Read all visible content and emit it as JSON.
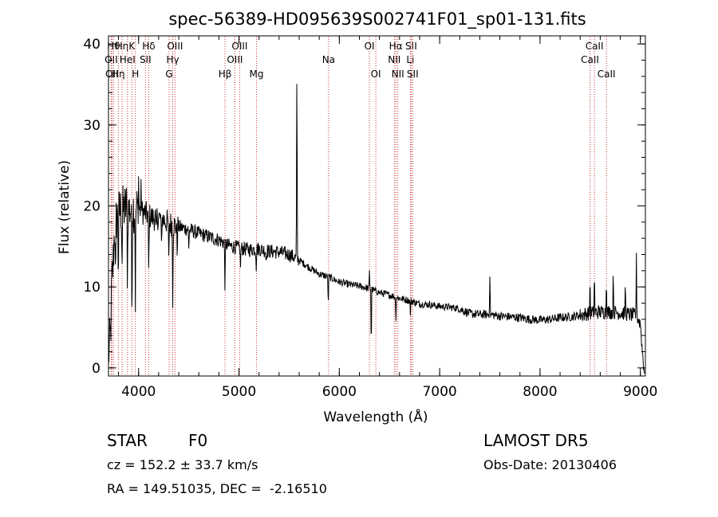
{
  "chart_data": {
    "type": "line",
    "title": "spec-56389-HD095639S002741F01_sp01-131.fits",
    "xlabel": "Wavelength (Å)",
    "ylabel": "Flux (relative)",
    "xlim": [
      3700,
      9050
    ],
    "ylim": [
      -1,
      41
    ],
    "xticks": [
      4000,
      5000,
      6000,
      7000,
      8000,
      9000
    ],
    "yticks": [
      0,
      10,
      20,
      30,
      40
    ],
    "grid": false,
    "line_color": "#000000",
    "marker_color": "#cc3333",
    "anchors": [
      [
        3700,
        1.5
      ],
      [
        3720,
        4
      ],
      [
        3740,
        11
      ],
      [
        3760,
        17
      ],
      [
        3780,
        18.5
      ],
      [
        3800,
        19
      ],
      [
        3820,
        19.5
      ],
      [
        3850,
        19.5
      ],
      [
        3880,
        20
      ],
      [
        3900,
        19.5
      ],
      [
        3950,
        19.8
      ],
      [
        4000,
        19.5
      ],
      [
        4050,
        19.2
      ],
      [
        4100,
        18.8
      ],
      [
        4150,
        18.5
      ],
      [
        4200,
        18.6
      ],
      [
        4250,
        18.3
      ],
      [
        4300,
        17.9
      ],
      [
        4400,
        17.4
      ],
      [
        4500,
        17.1
      ],
      [
        4600,
        16.6
      ],
      [
        4700,
        16.2
      ],
      [
        4800,
        15.8
      ],
      [
        4900,
        15.1
      ],
      [
        5000,
        14.8
      ],
      [
        5100,
        14.6
      ],
      [
        5200,
        14.7
      ],
      [
        5300,
        14.4
      ],
      [
        5400,
        14.3
      ],
      [
        5500,
        14.0
      ],
      [
        5600,
        13.3
      ],
      [
        5700,
        12.4
      ],
      [
        5800,
        11.6
      ],
      [
        5900,
        11.2
      ],
      [
        6000,
        10.6
      ],
      [
        6100,
        10.3
      ],
      [
        6200,
        10.1
      ],
      [
        6300,
        9.8
      ],
      [
        6400,
        9.3
      ],
      [
        6500,
        9.0
      ],
      [
        6600,
        8.6
      ],
      [
        6700,
        8.3
      ],
      [
        6800,
        7.9
      ],
      [
        6900,
        7.8
      ],
      [
        7000,
        7.6
      ],
      [
        7100,
        7.5
      ],
      [
        7200,
        7.3
      ],
      [
        7300,
        6.7
      ],
      [
        7400,
        6.6
      ],
      [
        7500,
        6.6
      ],
      [
        7600,
        6.4
      ],
      [
        7700,
        6.3
      ],
      [
        7800,
        6.2
      ],
      [
        7900,
        6.0
      ],
      [
        8000,
        5.9
      ],
      [
        8100,
        6.0
      ],
      [
        8200,
        6.2
      ],
      [
        8300,
        6.3
      ],
      [
        8400,
        6.5
      ],
      [
        8500,
        6.8
      ],
      [
        8600,
        6.9
      ],
      [
        8700,
        6.9
      ],
      [
        8800,
        6.8
      ],
      [
        8900,
        6.6
      ],
      [
        8960,
        6.4
      ],
      [
        9000,
        5.5
      ],
      [
        9020,
        2.0
      ],
      [
        9040,
        -0.5
      ]
    ],
    "features": [
      [
        3733,
        3.0
      ],
      [
        3770,
        -10
      ],
      [
        3798,
        -8
      ],
      [
        3835,
        -7
      ],
      [
        3889,
        -9
      ],
      [
        3933,
        -14
      ],
      [
        3968,
        -11
      ],
      [
        4000,
        4
      ],
      [
        4025,
        3
      ],
      [
        4101,
        -8
      ],
      [
        4175,
        -3
      ],
      [
        4227,
        -4
      ],
      [
        4300,
        -5
      ],
      [
        4340,
        -9
      ],
      [
        4384,
        -3
      ],
      [
        4500,
        -2.5
      ],
      [
        4861,
        -6
      ],
      [
        5015,
        -2.5
      ],
      [
        5172,
        -2
      ],
      [
        5270,
        -1.5
      ],
      [
        5577,
        25
      ],
      [
        5890,
        -4
      ],
      [
        6300,
        2
      ],
      [
        6318,
        -8
      ],
      [
        6563,
        -3
      ],
      [
        6708,
        -1.5
      ],
      [
        7500,
        5
      ],
      [
        8498,
        4.5
      ],
      [
        8542,
        5
      ],
      [
        8662,
        5
      ],
      [
        8730,
        5.5
      ],
      [
        8850,
        4
      ],
      [
        8960,
        7
      ]
    ],
    "line_markers": [
      {
        "x": 3727,
        "label": "OII",
        "row": 1
      },
      {
        "x": 3734,
        "label": "OII",
        "row": 2
      },
      {
        "x": 3750,
        "label": "Hθ",
        "row": 0
      },
      {
        "x": 3798,
        "label": "Hη",
        "row": 2
      },
      {
        "x": 3835,
        "label": "Hη",
        "row": 0
      },
      {
        "x": 3889,
        "label": "HeI",
        "row": 1
      },
      {
        "x": 3933,
        "label": "K",
        "row": 0
      },
      {
        "x": 3968,
        "label": "H",
        "row": 2
      },
      {
        "x": 4068,
        "label": "SII",
        "row": 1
      },
      {
        "x": 4101,
        "label": "Hδ",
        "row": 0
      },
      {
        "x": 4304,
        "label": "G",
        "row": 2
      },
      {
        "x": 4340,
        "label": "Hγ",
        "row": 1
      },
      {
        "x": 4363,
        "label": "OIII",
        "row": 0
      },
      {
        "x": 4861,
        "label": "Hβ",
        "row": 2
      },
      {
        "x": 4959,
        "label": "OIII",
        "row": 1
      },
      {
        "x": 5007,
        "label": "OIII",
        "row": 0
      },
      {
        "x": 5175,
        "label": "Mg",
        "row": 2
      },
      {
        "x": 5893,
        "label": "Na",
        "row": 1
      },
      {
        "x": 6300,
        "label": "OI",
        "row": 0
      },
      {
        "x": 6364,
        "label": "OI",
        "row": 2
      },
      {
        "x": 6548,
        "label": "NII",
        "row": 1
      },
      {
        "x": 6563,
        "label": "Hα",
        "row": 0
      },
      {
        "x": 6583,
        "label": "NII",
        "row": 2
      },
      {
        "x": 6708,
        "label": "Li",
        "row": 1
      },
      {
        "x": 6716,
        "label": "SII",
        "row": 0
      },
      {
        "x": 6731,
        "label": "SII",
        "row": 2
      },
      {
        "x": 8498,
        "label": "CaII",
        "row": 1
      },
      {
        "x": 8542,
        "label": "CaII",
        "row": 0
      },
      {
        "x": 8662,
        "label": "CaII",
        "row": 2
      }
    ]
  },
  "info": {
    "class_label": "STAR",
    "subclass": "F0",
    "survey": "LAMOST DR5",
    "cz": "cz = 152.2 ± 33.7 km/s",
    "obs_date": "Obs-Date: 20130406",
    "coords": "RA = 149.51035, DEC =  -2.16510"
  }
}
